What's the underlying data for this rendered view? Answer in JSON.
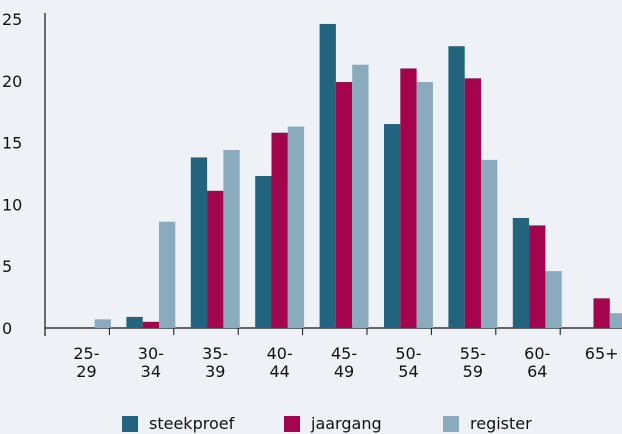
{
  "chart_data": {
    "type": "bar",
    "title": "",
    "xlabel": "",
    "ylabel": "",
    "ylim": [
      0,
      25
    ],
    "yticks": [
      0,
      5,
      10,
      15,
      20,
      25
    ],
    "grid": false,
    "legend_position": "bottom",
    "categories": [
      [
        "25-",
        "29"
      ],
      [
        "30-",
        "34"
      ],
      [
        "35-",
        "39"
      ],
      [
        "40-",
        "44"
      ],
      [
        "45-",
        "49"
      ],
      [
        "50-",
        "54"
      ],
      [
        "55-",
        "59"
      ],
      [
        "60-",
        "64"
      ],
      [
        "65+",
        ""
      ]
    ],
    "series": [
      {
        "name": "steekproef",
        "color": "#22637d",
        "values": [
          0,
          0.9,
          13.8,
          12.3,
          24.6,
          16.5,
          22.8,
          8.9,
          0
        ]
      },
      {
        "name": "jaargang",
        "color": "#a3044b",
        "values": [
          0,
          0.5,
          11.1,
          15.8,
          19.9,
          21.0,
          20.2,
          8.3,
          2.4
        ]
      },
      {
        "name": "register",
        "color": "#8aabbd",
        "values": [
          0.7,
          8.6,
          14.4,
          16.3,
          21.3,
          19.9,
          13.6,
          4.6,
          1.2
        ]
      }
    ]
  }
}
